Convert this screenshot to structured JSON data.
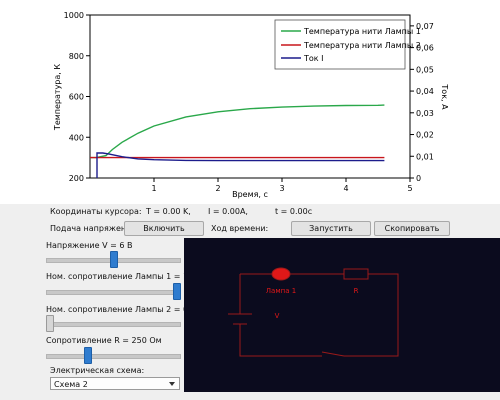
{
  "chart_data": {
    "type": "line",
    "x_ticks": [
      "1",
      "2",
      "3",
      "4",
      "5"
    ],
    "y_ticks": [
      "200",
      "400",
      "600",
      "800",
      "1000"
    ],
    "y2_ticks": [
      "0",
      "0,01",
      "0,02",
      "0,03",
      "0,04",
      "0,05",
      "0,06",
      "0,07"
    ],
    "xlabel": "Время, с",
    "ylabel": "Температура, К",
    "y2label": "Ток, А",
    "xlim": [
      0,
      5
    ],
    "ylim": [
      200,
      1000
    ],
    "y2lim": [
      0,
      0.075
    ],
    "grid": false,
    "legend_position": "top-right",
    "series": [
      {
        "name": "Температура нити Лампы 1",
        "color": "#2aa84a",
        "axis": "left",
        "x": [
          0,
          0.1,
          0.25,
          0.35,
          0.5,
          0.75,
          1.0,
          1.5,
          2.0,
          2.5,
          3.0,
          3.5,
          4.0,
          4.5,
          4.6
        ],
        "y": [
          300,
          300,
          310,
          340,
          375,
          420,
          455,
          500,
          525,
          540,
          548,
          553,
          556,
          557,
          558
        ]
      },
      {
        "name": "Температура нити Лампы 2",
        "color": "#c8161c",
        "axis": "left",
        "x": [
          0,
          0.25,
          0.5,
          1.0,
          2.0,
          3.0,
          4.0,
          4.6
        ],
        "y": [
          300,
          300,
          300,
          300,
          300,
          300,
          300,
          300
        ]
      },
      {
        "name": "Ток I",
        "color": "#1c1c8c",
        "axis": "right",
        "x": [
          0.11,
          0.11,
          0.2,
          0.3,
          0.5,
          0.75,
          1.0,
          1.5,
          2.0,
          3.0,
          4.0,
          4.6
        ],
        "y": [
          0,
          0.0115,
          0.0115,
          0.011,
          0.0098,
          0.0088,
          0.0084,
          0.0081,
          0.008,
          0.008,
          0.008,
          0.008
        ]
      }
    ]
  },
  "cursor": {
    "label": "Координаты курсора:",
    "t_value": "T = 0.00 K,",
    "i_value": "I = 0.00A,",
    "time_value": "t = 0.00c"
  },
  "controls": {
    "voltage_supply_label": "Подача напряжения:",
    "enable_button": "Включить",
    "time_course_label": "Ход времени:",
    "start_button": "Запустить",
    "copy_button": "Скопировать"
  },
  "sliders": [
    {
      "label": "Напряжение V = 6 В",
      "position": 0.5
    },
    {
      "label": "Ном. сопротивление Лампы 1 = 1 ед",
      "position": 1.0
    },
    {
      "label": "Ном. сопротивление Лампы 2 = 0.3 ед",
      "position": 0.0
    },
    {
      "label": "Сопротивление R = 250 Ом",
      "position": 0.3
    }
  ],
  "scheme": {
    "label": "Электрическая схема:",
    "selected": "Схема 2"
  },
  "circuit": {
    "lamp_label": "Лампа 1",
    "resistor_label": "R",
    "source_label": "V",
    "wire_color": "#9a1a1a",
    "lamp_color": "#e01818"
  }
}
